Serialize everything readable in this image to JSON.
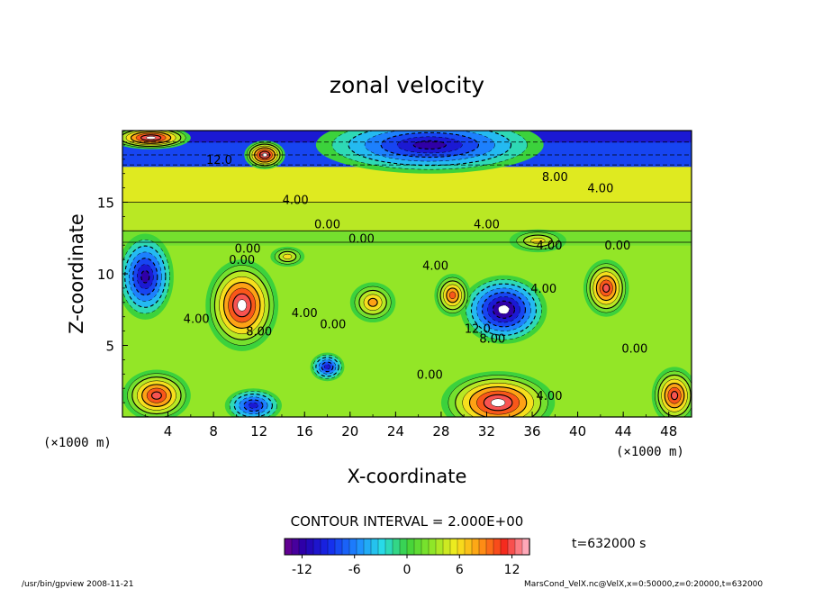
{
  "chart_data": {
    "type": "heatmap",
    "title": "zonal velocity",
    "xlabel": "X-coordinate",
    "ylabel": "Z-coordinate",
    "x_unit": "(×1000 m)",
    "y_unit": "(×1000 m)",
    "xlim": [
      0,
      50
    ],
    "ylim": [
      0,
      20
    ],
    "x_ticks": [
      "4",
      "8",
      "12",
      "16",
      "20",
      "24",
      "28",
      "32",
      "36",
      "40",
      "44",
      "48"
    ],
    "y_ticks": [
      "5",
      "10",
      "15"
    ],
    "x_tick_values": [
      4,
      8,
      12,
      16,
      20,
      24,
      28,
      32,
      36,
      40,
      44,
      48
    ],
    "y_tick_values": [
      5,
      10,
      15
    ],
    "contour_interval": "CONTOUR INTERVAL = 2.000E+00",
    "time_label": "t=632000 s",
    "colorbar": {
      "min": -14,
      "max": 14,
      "ticks": [
        "-12",
        "-6",
        "0",
        "6",
        "12"
      ],
      "tick_values": [
        -12,
        -6,
        0,
        6,
        12
      ]
    },
    "contour_labels": [
      {
        "text": "12.0",
        "x": 8.5,
        "z": 18.0
      },
      {
        "text": "8.00",
        "x": 38.0,
        "z": 16.8
      },
      {
        "text": "4.00",
        "x": 42.0,
        "z": 16.0
      },
      {
        "text": "4.00",
        "x": 15.2,
        "z": 15.2
      },
      {
        "text": "4.00",
        "x": 32.0,
        "z": 13.5
      },
      {
        "text": "0.00",
        "x": 18.0,
        "z": 13.5
      },
      {
        "text": "0.00",
        "x": 21.0,
        "z": 12.5
      },
      {
        "text": "4.00",
        "x": 37.5,
        "z": 12.0
      },
      {
        "text": "0.00",
        "x": 43.5,
        "z": 12.0
      },
      {
        "text": "0.00",
        "x": 11.0,
        "z": 11.8
      },
      {
        "text": "0.00",
        "x": 10.5,
        "z": 11.0
      },
      {
        "text": "4.00",
        "x": 27.5,
        "z": 10.6
      },
      {
        "text": "4.00",
        "x": 37.0,
        "z": 9.0
      },
      {
        "text": "4.00",
        "x": 6.5,
        "z": 6.9
      },
      {
        "text": "8.00",
        "x": 12.0,
        "z": 6.0
      },
      {
        "text": "4.00",
        "x": 16.0,
        "z": 7.3
      },
      {
        "text": "0.00",
        "x": 18.5,
        "z": 6.5
      },
      {
        "text": "12.0",
        "x": 31.2,
        "z": 6.2
      },
      {
        "text": "8.00",
        "x": 32.5,
        "z": 5.5
      },
      {
        "text": "0.00",
        "x": 45.0,
        "z": 4.8
      },
      {
        "text": "0.00",
        "x": 27.0,
        "z": 3.0
      },
      {
        "text": "4.00",
        "x": 37.5,
        "z": 1.5
      }
    ],
    "anomalies": [
      {
        "x": 10.5,
        "z": 7.8,
        "value": 14,
        "rx": 3.2,
        "rz": 3.2
      },
      {
        "x": 2.0,
        "z": 9.8,
        "value": -12,
        "rx": 2.5,
        "rz": 3.0
      },
      {
        "x": 33.5,
        "z": 7.5,
        "value": -14,
        "rx": 3.8,
        "rz": 2.4
      },
      {
        "x": 29.0,
        "z": 8.5,
        "value": 10,
        "rx": 1.6,
        "rz": 1.5
      },
      {
        "x": 42.5,
        "z": 9.0,
        "value": 12,
        "rx": 2.0,
        "rz": 2.0
      },
      {
        "x": 3.0,
        "z": 1.5,
        "value": 13,
        "rx": 3.0,
        "rz": 1.8
      },
      {
        "x": 33.0,
        "z": 1.0,
        "value": 14,
        "rx": 5.0,
        "rz": 2.2
      },
      {
        "x": 48.5,
        "z": 1.5,
        "value": 12,
        "rx": 2.0,
        "rz": 2.0
      },
      {
        "x": 18.0,
        "z": 3.5,
        "value": -11,
        "rx": 1.5,
        "rz": 1.0
      },
      {
        "x": 11.5,
        "z": 0.8,
        "value": -10,
        "rx": 2.5,
        "rz": 1.2
      },
      {
        "x": 22.0,
        "z": 8.0,
        "value": 9,
        "rx": 2.0,
        "rz": 1.4
      },
      {
        "x": 27.0,
        "z": 19.0,
        "value": -12,
        "rx": 10.0,
        "rz": 2.0
      },
      {
        "x": 12.5,
        "z": 18.3,
        "value": 14,
        "rx": 1.8,
        "rz": 1.0
      },
      {
        "x": 2.5,
        "z": 19.5,
        "value": 14,
        "rx": 3.5,
        "rz": 0.8
      },
      {
        "x": 36.5,
        "z": 12.3,
        "value": 7,
        "rx": 2.5,
        "rz": 0.8
      },
      {
        "x": 14.5,
        "z": 11.2,
        "value": 6,
        "rx": 1.5,
        "rz": 0.7
      }
    ]
  },
  "footer": {
    "left": "/usr/bin/gpview  2008-11-21",
    "right": "MarsCond_VelX.nc@VelX,x=0:50000,z=0:20000,t=632000"
  }
}
